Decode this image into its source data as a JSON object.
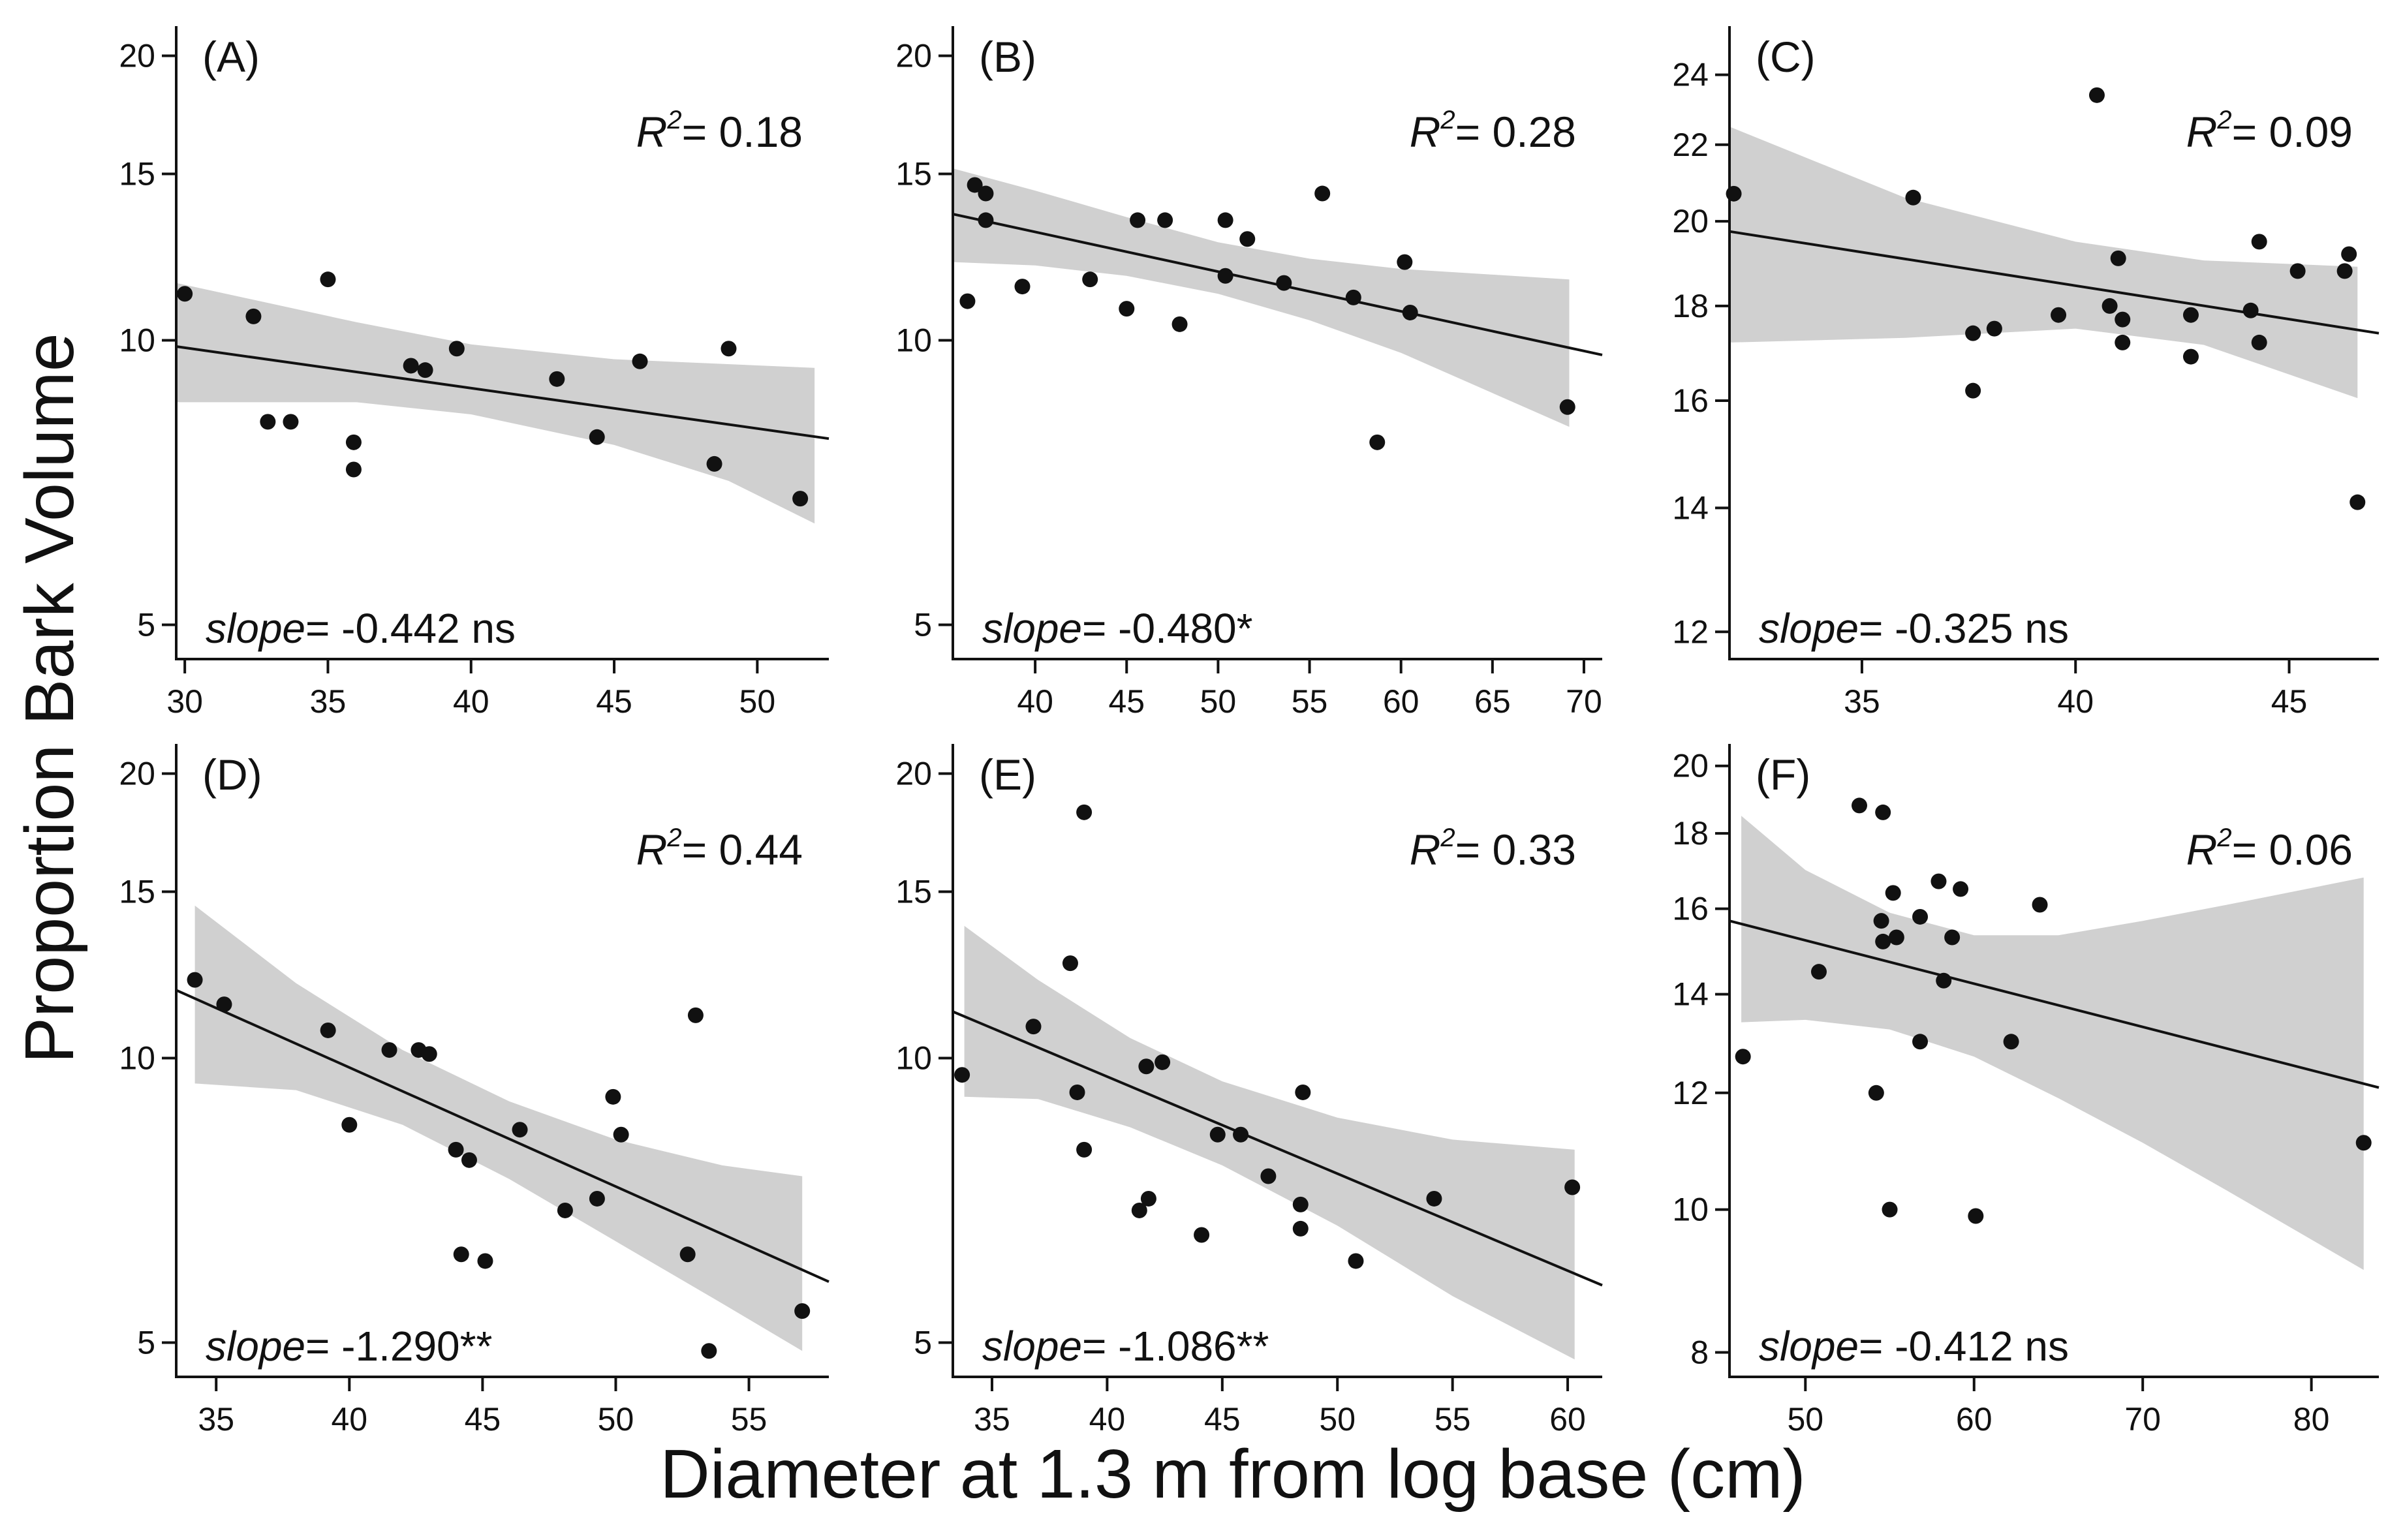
{
  "figure": {
    "ylabel": "Proportion Bark Volume",
    "xlabel": "Diameter at 1.3 m from log base (cm)",
    "colors": {
      "point": "#111111",
      "line": "#111111",
      "band": "#d0d0d0",
      "axis": "#111111"
    }
  },
  "chart_data": [
    {
      "type": "scatter",
      "panel": "(A)",
      "r2_prefix": "R",
      "r2_sup": "2",
      "r2_value": "= 0.18",
      "slope_label": "slope",
      "slope_text": "= -0.442 ns",
      "y_scale": "log",
      "xlim": [
        29.7,
        52.5
      ],
      "ylim": [
        4.6,
        21.5
      ],
      "xticks": [
        30,
        35,
        40,
        45,
        50
      ],
      "yticks": [
        5,
        10,
        15,
        20
      ],
      "points": [
        [
          30,
          11.2
        ],
        [
          32.4,
          10.6
        ],
        [
          32.9,
          8.2
        ],
        [
          33.7,
          8.2
        ],
        [
          35,
          11.6
        ],
        [
          35.9,
          7.8
        ],
        [
          35.9,
          7.3
        ],
        [
          37.9,
          9.4
        ],
        [
          38.4,
          9.3
        ],
        [
          39.5,
          9.8
        ],
        [
          43,
          9.1
        ],
        [
          44.4,
          7.9
        ],
        [
          45.9,
          9.5
        ],
        [
          48.5,
          7.4
        ],
        [
          49,
          9.8
        ],
        [
          51.5,
          6.8
        ]
      ],
      "fit": [
        [
          29.7,
          9.85
        ],
        [
          52.5,
          7.87
        ]
      ],
      "band_upper": [
        [
          29.7,
          11.5
        ],
        [
          36,
          10.45
        ],
        [
          40,
          9.9
        ],
        [
          45,
          9.55
        ],
        [
          52,
          9.35
        ]
      ],
      "band_lower": [
        [
          29.7,
          8.6
        ],
        [
          36,
          8.6
        ],
        [
          40,
          8.35
        ],
        [
          45,
          7.75
        ],
        [
          49,
          7.1
        ],
        [
          52,
          6.4
        ]
      ]
    },
    {
      "type": "scatter",
      "panel": "(B)",
      "r2_prefix": "R",
      "r2_sup": "2",
      "r2_value": "= 0.28",
      "slope_label": "slope",
      "slope_text": "= -0.480*",
      "y_scale": "log",
      "xlim": [
        35.5,
        71
      ],
      "ylim": [
        4.6,
        21.5
      ],
      "xticks": [
        40,
        45,
        50,
        55,
        60,
        65,
        70
      ],
      "yticks": [
        5,
        10,
        15,
        20
      ],
      "points": [
        [
          36.3,
          11
        ],
        [
          36.7,
          14.6
        ],
        [
          37.3,
          13.4
        ],
        [
          37.3,
          14.3
        ],
        [
          39.3,
          11.4
        ],
        [
          43,
          11.6
        ],
        [
          45,
          10.8
        ],
        [
          45.6,
          13.4
        ],
        [
          47.1,
          13.4
        ],
        [
          47.9,
          10.4
        ],
        [
          50.4,
          13.4
        ],
        [
          50.4,
          11.7
        ],
        [
          51.6,
          12.8
        ],
        [
          53.6,
          11.5
        ],
        [
          55.7,
          14.3
        ],
        [
          57.4,
          11.1
        ],
        [
          58.7,
          7.8
        ],
        [
          60.2,
          12.1
        ],
        [
          60.5,
          10.7
        ],
        [
          69.1,
          8.5
        ]
      ],
      "fit": [
        [
          35.5,
          13.6
        ],
        [
          71,
          9.65
        ]
      ],
      "band_upper": [
        [
          35.5,
          15.2
        ],
        [
          40,
          14.4
        ],
        [
          45,
          13.5
        ],
        [
          50,
          12.7
        ],
        [
          55,
          12.2
        ],
        [
          60,
          11.9
        ],
        [
          69.2,
          11.6
        ]
      ],
      "band_lower": [
        [
          35.5,
          12.1
        ],
        [
          40,
          12.0
        ],
        [
          45,
          11.7
        ],
        [
          50,
          11.2
        ],
        [
          55,
          10.5
        ],
        [
          60,
          9.7
        ],
        [
          69.2,
          8.1
        ]
      ]
    },
    {
      "type": "scatter",
      "panel": "(C)",
      "r2_prefix": "R",
      "r2_sup": "2",
      "r2_value": "= 0.09",
      "slope_label": "slope",
      "slope_text": "= -0.325 ns",
      "y_scale": "log",
      "xlim": [
        31.9,
        47.1
      ],
      "ylim": [
        11.6,
        25.5
      ],
      "xticks": [
        35,
        40,
        45
      ],
      "yticks": [
        12,
        14,
        16,
        18,
        20,
        22,
        24
      ],
      "points": [
        [
          32,
          20.7
        ],
        [
          36.2,
          20.6
        ],
        [
          37.6,
          17.4
        ],
        [
          37.6,
          16.2
        ],
        [
          38.1,
          17.5
        ],
        [
          39.6,
          17.8
        ],
        [
          40.5,
          23.4
        ],
        [
          40.8,
          18
        ],
        [
          41,
          19.1
        ],
        [
          41.1,
          17.7
        ],
        [
          41.1,
          17.2
        ],
        [
          42.7,
          17.8
        ],
        [
          42.7,
          16.9
        ],
        [
          44.1,
          17.9
        ],
        [
          44.3,
          19.5
        ],
        [
          44.3,
          17.2
        ],
        [
          45.2,
          18.8
        ],
        [
          46.3,
          18.8
        ],
        [
          46.4,
          19.2
        ],
        [
          46.6,
          14.1
        ]
      ],
      "fit": [
        [
          31.9,
          19.75
        ],
        [
          47.1,
          17.4
        ]
      ],
      "band_upper": [
        [
          31.9,
          22.5
        ],
        [
          36,
          20.6
        ],
        [
          40,
          19.5
        ],
        [
          43,
          19.05
        ],
        [
          46.6,
          18.9
        ]
      ],
      "band_lower": [
        [
          31.9,
          17.2
        ],
        [
          36,
          17.3
        ],
        [
          40,
          17.5
        ],
        [
          43,
          17.15
        ],
        [
          46.6,
          16.05
        ]
      ]
    },
    {
      "type": "scatter",
      "panel": "(D)",
      "r2_prefix": "R",
      "r2_sup": "2",
      "r2_value": "= 0.44",
      "slope_label": "slope",
      "slope_text": "= -1.290**",
      "y_scale": "log",
      "xlim": [
        33.5,
        58
      ],
      "ylim": [
        4.6,
        21.5
      ],
      "xticks": [
        35,
        40,
        45,
        50,
        55
      ],
      "yticks": [
        5,
        10,
        15,
        20
      ],
      "points": [
        [
          34.2,
          12.1
        ],
        [
          35.3,
          11.4
        ],
        [
          39.2,
          10.7
        ],
        [
          40,
          8.5
        ],
        [
          41.5,
          10.2
        ],
        [
          42.6,
          10.2
        ],
        [
          43,
          10.1
        ],
        [
          44,
          8
        ],
        [
          44.2,
          6.2
        ],
        [
          44.5,
          7.8
        ],
        [
          45.1,
          6.1
        ],
        [
          46.4,
          8.4
        ],
        [
          48.1,
          6.9
        ],
        [
          49.3,
          7.1
        ],
        [
          49.9,
          9.1
        ],
        [
          50.2,
          8.3
        ],
        [
          52.7,
          6.2
        ],
        [
          53,
          11.1
        ],
        [
          53.5,
          4.9
        ],
        [
          57,
          5.4
        ]
      ],
      "fit": [
        [
          33.5,
          11.8
        ],
        [
          58,
          5.8
        ]
      ],
      "band_upper": [
        [
          34.2,
          14.5
        ],
        [
          38,
          12.0
        ],
        [
          42,
          10.2
        ],
        [
          46,
          9.0
        ],
        [
          50,
          8.2
        ],
        [
          54,
          7.7
        ],
        [
          57,
          7.5
        ]
      ],
      "band_lower": [
        [
          34.2,
          9.4
        ],
        [
          38,
          9.25
        ],
        [
          42,
          8.5
        ],
        [
          46,
          7.45
        ],
        [
          50,
          6.4
        ],
        [
          54,
          5.5
        ],
        [
          57,
          4.9
        ]
      ]
    },
    {
      "type": "scatter",
      "panel": "(E)",
      "r2_prefix": "R",
      "r2_sup": "2",
      "r2_value": "= 0.33",
      "slope_label": "slope",
      "slope_text": "= -1.086**",
      "y_scale": "log",
      "xlim": [
        33.3,
        61.5
      ],
      "ylim": [
        4.6,
        21.5
      ],
      "xticks": [
        35,
        40,
        45,
        50,
        55,
        60
      ],
      "yticks": [
        5,
        10,
        15,
        20
      ],
      "points": [
        [
          33.7,
          9.6
        ],
        [
          36.8,
          10.8
        ],
        [
          38.4,
          12.6
        ],
        [
          38.7,
          9.2
        ],
        [
          39,
          8
        ],
        [
          39,
          18.2
        ],
        [
          41.4,
          6.9
        ],
        [
          41.7,
          9.8
        ],
        [
          41.8,
          7.1
        ],
        [
          42.4,
          9.9
        ],
        [
          44.1,
          6.5
        ],
        [
          44.8,
          8.3
        ],
        [
          45.8,
          8.3
        ],
        [
          47,
          7.5
        ],
        [
          48.4,
          7
        ],
        [
          48.4,
          6.6
        ],
        [
          48.5,
          9.2
        ],
        [
          50.8,
          6.1
        ],
        [
          54.2,
          7.1
        ],
        [
          60.2,
          7.3
        ]
      ],
      "fit": [
        [
          33.3,
          11.2
        ],
        [
          61.5,
          5.75
        ]
      ],
      "band_upper": [
        [
          33.8,
          13.8
        ],
        [
          37,
          12.1
        ],
        [
          41,
          10.5
        ],
        [
          45,
          9.45
        ],
        [
          50,
          8.65
        ],
        [
          55,
          8.2
        ],
        [
          60.3,
          8.0
        ]
      ],
      "band_lower": [
        [
          33.8,
          9.1
        ],
        [
          37,
          9.05
        ],
        [
          41,
          8.45
        ],
        [
          45,
          7.7
        ],
        [
          50,
          6.65
        ],
        [
          55,
          5.6
        ],
        [
          60.3,
          4.8
        ]
      ]
    },
    {
      "type": "scatter",
      "panel": "(F)",
      "r2_prefix": "R",
      "r2_sup": "2",
      "r2_value": "= 0.06",
      "slope_label": "slope",
      "slope_text": "= -0.412 ns",
      "y_scale": "log",
      "xlim": [
        45.5,
        84
      ],
      "ylim": [
        7.7,
        20.7
      ],
      "xticks": [
        50,
        60,
        70,
        80
      ],
      "yticks": [
        8,
        10,
        12,
        14,
        16,
        18,
        20
      ],
      "points": [
        [
          46.3,
          12.7
        ],
        [
          50.8,
          14.5
        ],
        [
          53.2,
          18.8
        ],
        [
          54.2,
          12
        ],
        [
          54.5,
          15.7
        ],
        [
          54.6,
          15.2
        ],
        [
          54.6,
          18.6
        ],
        [
          55,
          10
        ],
        [
          55.2,
          16.4
        ],
        [
          55.4,
          15.3
        ],
        [
          56.8,
          15.8
        ],
        [
          56.8,
          13
        ],
        [
          57.9,
          16.7
        ],
        [
          58.2,
          14.3
        ],
        [
          58.7,
          15.3
        ],
        [
          59.2,
          16.5
        ],
        [
          60.1,
          9.9
        ],
        [
          62.2,
          13
        ],
        [
          63.9,
          16.1
        ],
        [
          83.1,
          11.1
        ]
      ],
      "fit": [
        [
          45.5,
          15.7
        ],
        [
          84,
          12.1
        ]
      ],
      "band_upper": [
        [
          46.2,
          18.5
        ],
        [
          50,
          17.0
        ],
        [
          55,
          15.9
        ],
        [
          60,
          15.35
        ],
        [
          65,
          15.35
        ],
        [
          70,
          15.7
        ],
        [
          75,
          16.1
        ],
        [
          83.1,
          16.8
        ]
      ],
      "band_lower": [
        [
          46.2,
          13.4
        ],
        [
          50,
          13.45
        ],
        [
          55,
          13.25
        ],
        [
          60,
          12.7
        ],
        [
          65,
          11.9
        ],
        [
          70,
          11.1
        ],
        [
          75,
          10.3
        ],
        [
          83.1,
          9.1
        ]
      ]
    }
  ]
}
